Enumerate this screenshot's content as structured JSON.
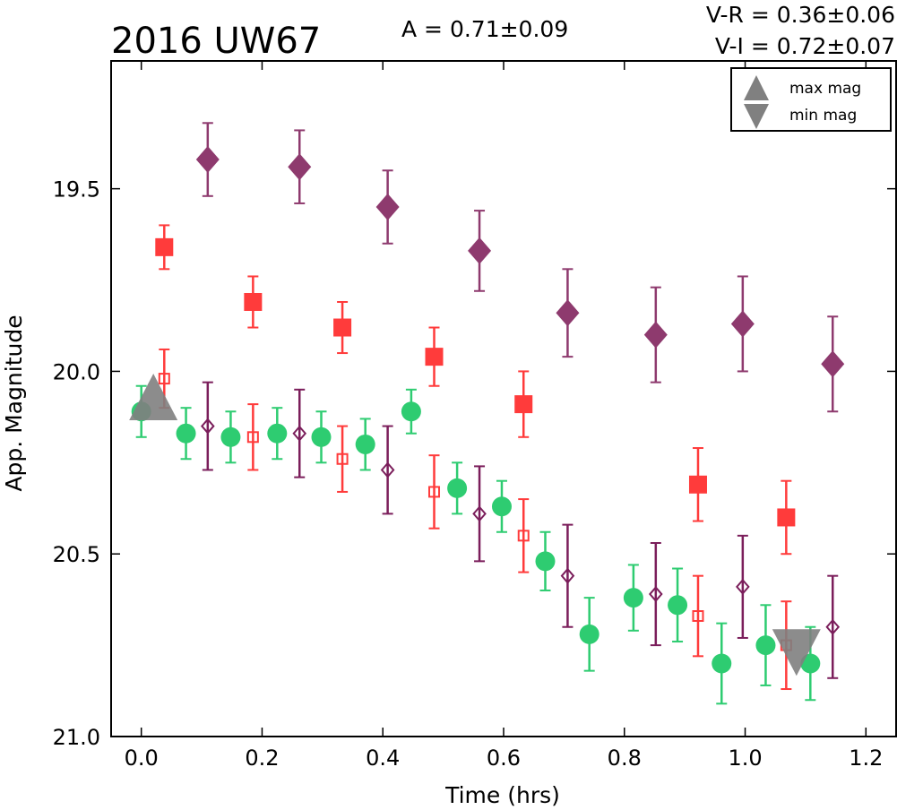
{
  "chart_data": {
    "type": "scatter",
    "title": "2016 UW67",
    "annotations": {
      "amplitude": "A  = 0.71±0.09",
      "v_minus_r": "V-R = 0.36±0.06",
      "v_minus_i": "V-I  = 0.72±0.07"
    },
    "xlabel": "Time (hrs)",
    "ylabel": "App. Magnitude",
    "xlim": [
      -0.05,
      1.25
    ],
    "ylim": [
      21.0,
      19.15
    ],
    "y_inverted": true,
    "xticks": [
      "0.0",
      "0.2",
      "0.4",
      "0.6",
      "0.8",
      "1.0",
      "1.2"
    ],
    "yticks": [
      "19.5",
      "20.0",
      "20.5",
      "21.0"
    ],
    "xtick_values": [
      0.0,
      0.2,
      0.4,
      0.6,
      0.8,
      1.0,
      1.2
    ],
    "ytick_values": [
      19.5,
      20.0,
      20.5,
      21.0
    ],
    "grid": false,
    "legend_position": "top-right",
    "legend": [
      {
        "label": "max mag",
        "marker": "triangle-up",
        "color": "#808080"
      },
      {
        "label": "min mag",
        "marker": "triangle-down",
        "color": "#808080"
      }
    ],
    "series": [
      {
        "marker": "circle",
        "filled": true,
        "color": "#2ecc71",
        "points": [
          {
            "x": 0.0,
            "y": 20.11,
            "err": 0.07
          },
          {
            "x": 0.074,
            "y": 20.17,
            "err": 0.07
          },
          {
            "x": 0.148,
            "y": 20.18,
            "err": 0.07
          },
          {
            "x": 0.225,
            "y": 20.17,
            "err": 0.07
          },
          {
            "x": 0.298,
            "y": 20.18,
            "err": 0.07
          },
          {
            "x": 0.371,
            "y": 20.2,
            "err": 0.07
          },
          {
            "x": 0.447,
            "y": 20.11,
            "err": 0.06
          },
          {
            "x": 0.523,
            "y": 20.32,
            "err": 0.07
          },
          {
            "x": 0.597,
            "y": 20.37,
            "err": 0.07
          },
          {
            "x": 0.669,
            "y": 20.52,
            "err": 0.08
          },
          {
            "x": 0.742,
            "y": 20.72,
            "err": 0.1
          },
          {
            "x": 0.815,
            "y": 20.62,
            "err": 0.09
          },
          {
            "x": 0.888,
            "y": 20.64,
            "err": 0.1
          },
          {
            "x": 0.961,
            "y": 20.8,
            "err": 0.11
          },
          {
            "x": 1.034,
            "y": 20.75,
            "err": 0.11
          },
          {
            "x": 1.108,
            "y": 20.8,
            "err": 0.1
          }
        ]
      },
      {
        "marker": "square",
        "filled": true,
        "color": "#ff3b3b",
        "points": [
          {
            "x": 0.038,
            "y": 19.66,
            "err": 0.06
          },
          {
            "x": 0.185,
            "y": 19.81,
            "err": 0.07
          },
          {
            "x": 0.333,
            "y": 19.88,
            "err": 0.07
          },
          {
            "x": 0.485,
            "y": 19.96,
            "err": 0.08
          },
          {
            "x": 0.633,
            "y": 20.09,
            "err": 0.09
          },
          {
            "x": 0.922,
            "y": 20.31,
            "err": 0.1
          },
          {
            "x": 1.068,
            "y": 20.4,
            "err": 0.1
          }
        ]
      },
      {
        "marker": "diamond",
        "filled": true,
        "color": "#8e3a6e",
        "points": [
          {
            "x": 0.11,
            "y": 19.42,
            "err": 0.1
          },
          {
            "x": 0.262,
            "y": 19.44,
            "err": 0.1
          },
          {
            "x": 0.408,
            "y": 19.55,
            "err": 0.1
          },
          {
            "x": 0.56,
            "y": 19.67,
            "err": 0.11
          },
          {
            "x": 0.706,
            "y": 19.84,
            "err": 0.12
          },
          {
            "x": 0.852,
            "y": 19.9,
            "err": 0.13
          },
          {
            "x": 0.996,
            "y": 19.87,
            "err": 0.13
          },
          {
            "x": 1.145,
            "y": 19.98,
            "err": 0.13
          }
        ]
      },
      {
        "marker": "square",
        "filled": false,
        "color": "#ff3b3b",
        "points": [
          {
            "x": 0.038,
            "y": 20.02,
            "err": 0.08
          },
          {
            "x": 0.185,
            "y": 20.18,
            "err": 0.09
          },
          {
            "x": 0.333,
            "y": 20.24,
            "err": 0.09
          },
          {
            "x": 0.485,
            "y": 20.33,
            "err": 0.1
          },
          {
            "x": 0.633,
            "y": 20.45,
            "err": 0.1
          },
          {
            "x": 0.922,
            "y": 20.67,
            "err": 0.11
          },
          {
            "x": 1.068,
            "y": 20.75,
            "err": 0.12
          }
        ]
      },
      {
        "marker": "diamond",
        "filled": false,
        "color": "#7b1e5b",
        "points": [
          {
            "x": 0.11,
            "y": 20.15,
            "err": 0.12
          },
          {
            "x": 0.262,
            "y": 20.17,
            "err": 0.12
          },
          {
            "x": 0.408,
            "y": 20.27,
            "err": 0.12
          },
          {
            "x": 0.56,
            "y": 20.39,
            "err": 0.13
          },
          {
            "x": 0.706,
            "y": 20.56,
            "err": 0.14
          },
          {
            "x": 0.852,
            "y": 20.61,
            "err": 0.14
          },
          {
            "x": 0.996,
            "y": 20.59,
            "err": 0.14
          },
          {
            "x": 1.145,
            "y": 20.7,
            "err": 0.14
          }
        ]
      }
    ],
    "extrema_markers": [
      {
        "marker": "triangle-up",
        "x": 0.02,
        "y": 20.07,
        "color": "#808080"
      },
      {
        "marker": "triangle-down",
        "x": 1.085,
        "y": 20.77,
        "color": "#808080"
      }
    ]
  }
}
